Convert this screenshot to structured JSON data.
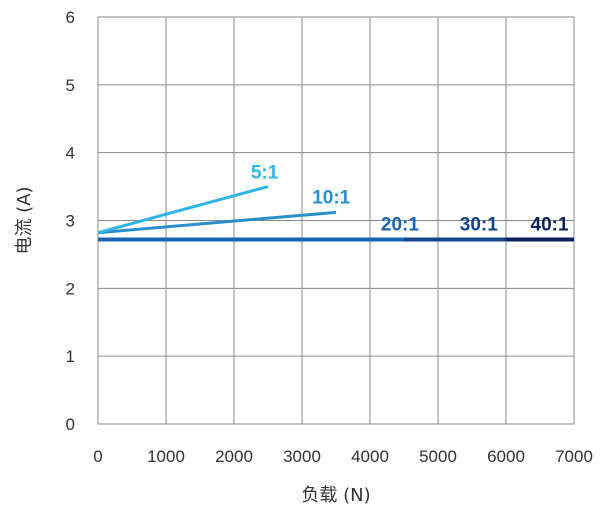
{
  "chart_data": {
    "type": "line",
    "title": "",
    "xlabel": "负载 (N)",
    "ylabel": "电流 (A)",
    "xlim": [
      0,
      7000
    ],
    "ylim": [
      0,
      6
    ],
    "x_ticks": [
      "0",
      "1000",
      "2000",
      "3000",
      "4000",
      "5000",
      "6000",
      "7000"
    ],
    "y_ticks": [
      "0",
      "1",
      "2",
      "3",
      "4",
      "5",
      "6"
    ],
    "grid": true,
    "series": [
      {
        "name": "40:1",
        "color": "#0d1f5c",
        "x": [
          0,
          7000
        ],
        "y": [
          2.72,
          2.72
        ]
      },
      {
        "name": "30:1",
        "color": "#14438a",
        "x": [
          0,
          6000
        ],
        "y": [
          2.72,
          2.72
        ]
      },
      {
        "name": "20:1",
        "color": "#1a63b0",
        "x": [
          0,
          4500
        ],
        "y": [
          2.72,
          2.72
        ]
      },
      {
        "name": "10:1",
        "color": "#2a8dcc",
        "x": [
          0,
          3500
        ],
        "y": [
          2.82,
          3.12
        ]
      },
      {
        "name": "5:1",
        "color": "#32b3e6",
        "x": [
          0,
          2500
        ],
        "y": [
          2.82,
          3.5
        ]
      }
    ],
    "annotations": [
      {
        "text": "5:1",
        "series": "5:1",
        "x": 2450,
        "y": 3.62
      },
      {
        "text": "10:1",
        "series": "10:1",
        "x": 3430,
        "y": 3.25
      },
      {
        "text": "20:1",
        "series": "20:1",
        "x": 4440,
        "y": 2.85
      },
      {
        "text": "30:1",
        "series": "30:1",
        "x": 5600,
        "y": 2.85
      },
      {
        "text": "40:1",
        "series": "40:1",
        "x": 6640,
        "y": 2.85
      }
    ]
  }
}
